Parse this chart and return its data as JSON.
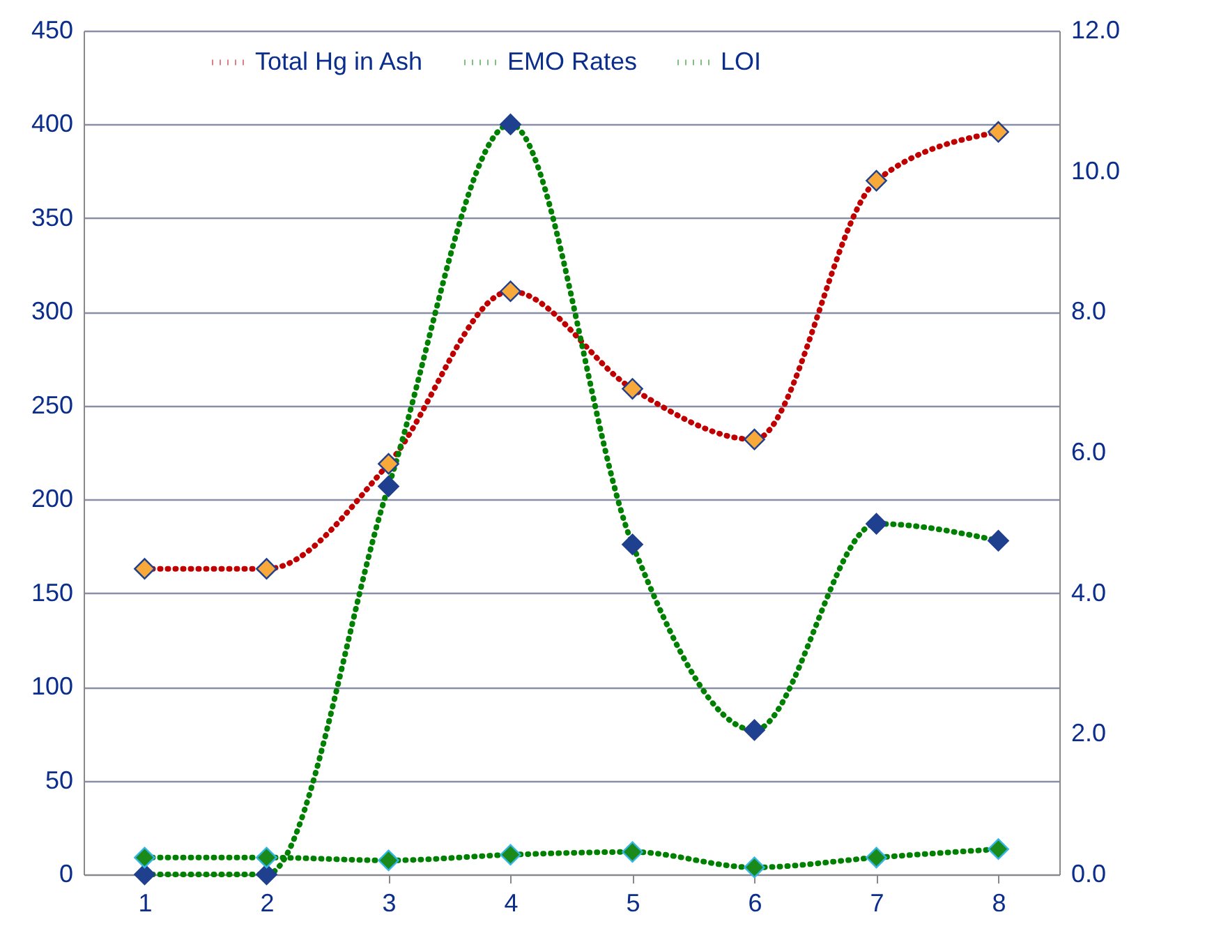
{
  "chart_data": {
    "type": "line",
    "categories": [
      "1",
      "2",
      "3",
      "4",
      "5",
      "6",
      "7",
      "8"
    ],
    "series": [
      {
        "name": "Total Hg in Ash",
        "color": "#c00000",
        "colors": [
          "#f9a83a",
          "#f9a83a",
          "#f9a83a",
          "#f9a83a",
          "#f9a83a",
          "#f9a83a",
          "#f9a83a",
          "#f9a83a"
        ],
        "values": [
          163,
          163,
          219,
          311,
          259,
          232,
          370,
          396
        ]
      },
      {
        "name": "EMO Rates",
        "color": "#008000",
        "colors": [
          "#1f3f8f",
          "#1f3f8f",
          "#1f3f8f",
          "#1f3f8f",
          "#1f3f8f",
          "#1f3f8f",
          "#1f3f8f",
          "#1f3f8f"
        ],
        "values": [
          0,
          0,
          207,
          400,
          176,
          77,
          187,
          178
        ]
      },
      {
        "name": "LOI",
        "color": "#008000",
        "axis": "y2",
        "colors": [
          "#1a8a1a",
          "#1a8a1a",
          "#1a8a1a",
          "#1a8a1a",
          "#1a8a1a",
          "#1a8a1a",
          "#1a8a1a",
          "#1a8a1a"
        ],
        "values": [
          0.24,
          0.24,
          0.2,
          0.28,
          0.32,
          0.1,
          0.24,
          0.36
        ]
      }
    ],
    "ylim": [
      0,
      450
    ],
    "yticks": [
      0,
      50,
      100,
      150,
      200,
      250,
      300,
      350,
      400,
      450
    ],
    "y2lim": [
      0,
      12
    ],
    "y2ticks": [
      {
        "value": 0,
        "label": "0.0"
      },
      {
        "value": 2,
        "label": "2.0"
      },
      {
        "value": 4,
        "label": "4.0"
      },
      {
        "value": 6,
        "label": "6.0"
      },
      {
        "value": 8,
        "label": "8.0"
      },
      {
        "value": 10,
        "label": "10.0"
      },
      {
        "value": 12,
        "label": "12.0"
      }
    ],
    "grid": "y",
    "legend": "top",
    "marker": "diamond",
    "line_style": "dotted"
  }
}
